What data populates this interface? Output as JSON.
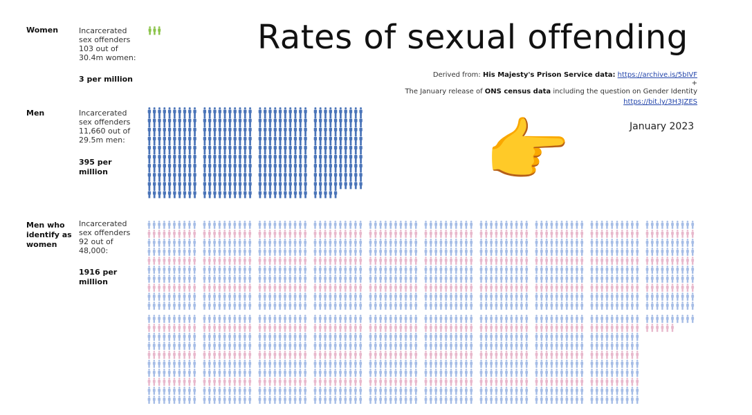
{
  "header": {
    "title": "Rates of sexual offending",
    "derived_prefix": "Derived from:",
    "source1_bold": "His Majesty's Prison Service data:",
    "source1_link": "https://archive.is/5bIVF",
    "plus": "+",
    "source2_pre": "The January release of",
    "source2_bold": "ONS census data",
    "source2_post": "including the question on Gender Identity",
    "source2_link": "https://bit.ly/3H3JZES",
    "date": "January 2023"
  },
  "pointing_emoji": "👉",
  "chart_data": {
    "type": "pictogram",
    "colors": {
      "women": "#8bc34a",
      "men": "#4a74b8",
      "tw_blue": "#a6bde6",
      "tw_pink": "#e8b8cc"
    },
    "series": [
      {
        "name": "Women",
        "desc_lines": [
          "Incarcerated",
          "sex offenders",
          "103 out of",
          "30.4m women:"
        ],
        "rate_label": "3 per million",
        "per_million": 3,
        "offenders": 103,
        "population": "30.4m"
      },
      {
        "name": "Men",
        "desc_lines": [
          "Incarcerated",
          "sex offenders",
          "11,660 out of",
          "29.5m men:"
        ],
        "rate_label": "395 per million",
        "per_million": 395,
        "offenders": 11660,
        "population": "29.5m"
      },
      {
        "name": "Men who identify as women",
        "desc_lines": [
          "Incarcerated",
          "sex offenders",
          "92 out of",
          "48,000:"
        ],
        "rate_label": "1916 per million",
        "per_million": 1916,
        "offenders": 92,
        "population": "48,000"
      }
    ]
  }
}
